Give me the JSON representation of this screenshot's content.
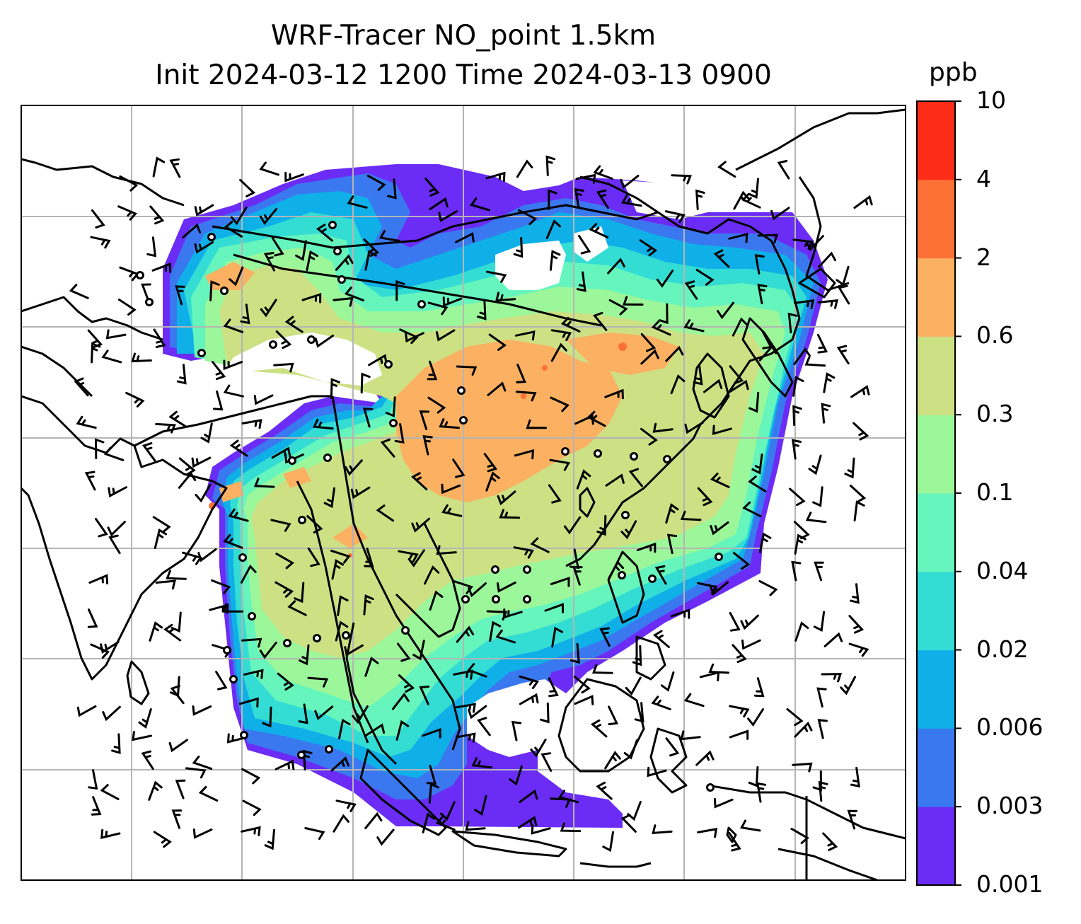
{
  "title": {
    "line1": "WRF-Tracer NO_point 1.5km",
    "line2": "Init 2024-03-12 1200 Time 2024-03-13 0900"
  },
  "colorbar": {
    "units": "ppb",
    "ticks": [
      "0.001",
      "0.003",
      "0.006",
      "0.02",
      "0.04",
      "0.1",
      "0.3",
      "0.6",
      "2",
      "4",
      "10"
    ],
    "colors": [
      "#6b2cf5",
      "#3a78f0",
      "#0fb0e8",
      "#33ddd3",
      "#66f5bd",
      "#9cf79a",
      "#cde084",
      "#fbb062",
      "#fc7236",
      "#fc2d18"
    ]
  },
  "map": {
    "gridlines": true,
    "wind_barbs": true,
    "coastlines": true
  }
}
